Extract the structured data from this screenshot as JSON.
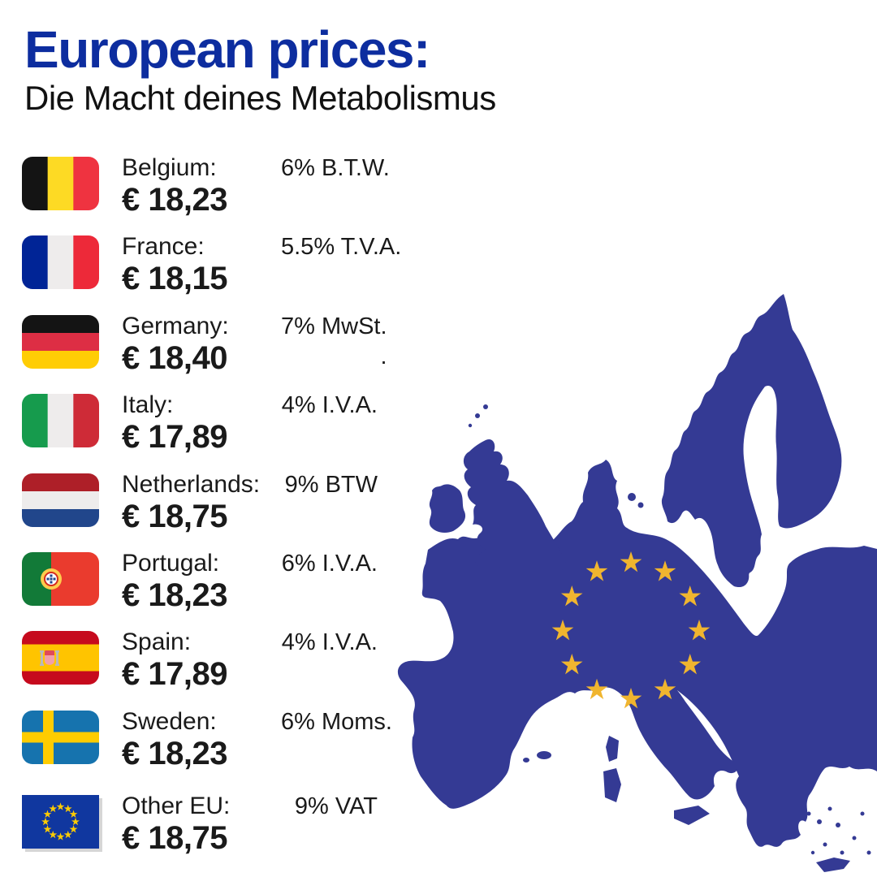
{
  "header": {
    "title": "European prices:",
    "subtitle": "Die Macht deines Metabolismus"
  },
  "colors": {
    "title_blue": "#0D2D9F",
    "text_dark": "#1A1A1A",
    "map_land_blue": "#343A94",
    "map_star_gold": "#F0B52F"
  },
  "rows": [
    {
      "country": "Belgium:",
      "price": "€ 18,23",
      "vat": "6% B.T.W.",
      "flag": {
        "icon": "belgium-flag-icon",
        "type": "v3",
        "colors": [
          "#141414",
          "#FDDA24",
          "#EF3340"
        ]
      }
    },
    {
      "country": "France:",
      "price": "€ 18,15",
      "vat": "5.5% T.V.A.",
      "flag": {
        "icon": "france-flag-icon",
        "type": "v3",
        "colors": [
          "#002496",
          "#EEECEC",
          "#ED2939"
        ]
      }
    },
    {
      "country": "Germany:",
      "price": "€ 18,40",
      "vat": "7% MwSt.",
      "vat2": ".",
      "flag": {
        "icon": "germany-flag-icon",
        "type": "h3",
        "colors": [
          "#141414",
          "#DD2E44",
          "#FFCD05"
        ]
      }
    },
    {
      "country": "Italy:",
      "price": "€ 17,89",
      "vat": "4% I.V.A.",
      "flag": {
        "icon": "italy-flag-icon",
        "type": "v3",
        "colors": [
          "#169B4D",
          "#EEECEC",
          "#CE2B37"
        ]
      }
    },
    {
      "country": "Netherlands:",
      "price": "€ 18,75",
      "vat": "9% BTW",
      "flag": {
        "icon": "netherlands-flag-icon",
        "type": "h3",
        "colors": [
          "#AE1F28",
          "#EEECEC",
          "#21468B"
        ]
      }
    },
    {
      "country": "Portugal:",
      "price": "€ 18,23",
      "vat": "6% I.V.A.",
      "flag": {
        "icon": "portugal-flag-icon",
        "type": "portugal",
        "colors": [
          "#127A38",
          "#EA3B2E",
          "#FFCC4D"
        ]
      }
    },
    {
      "country": "Spain:",
      "price": "€ 17,89",
      "vat": "4% I.V.A.",
      "flag": {
        "icon": "spain-flag-icon",
        "type": "spain",
        "colors": [
          "#C60A1D",
          "#FFC400"
        ]
      }
    },
    {
      "country": "Sweden:",
      "price": "€ 18,23",
      "vat": "6% Moms.",
      "flag": {
        "icon": "sweden-flag-icon",
        "type": "sweden",
        "colors": [
          "#1673AE",
          "#FECC00"
        ]
      }
    },
    {
      "country": "Other EU:",
      "price": "€ 18,75",
      "vat": "9% VAT",
      "flag": {
        "icon": "eu-flag-icon",
        "type": "eu",
        "colors": [
          "#10379F",
          "#FFCC00"
        ]
      }
    }
  ],
  "map": {
    "name": "europe-map",
    "stars_count": 12
  }
}
